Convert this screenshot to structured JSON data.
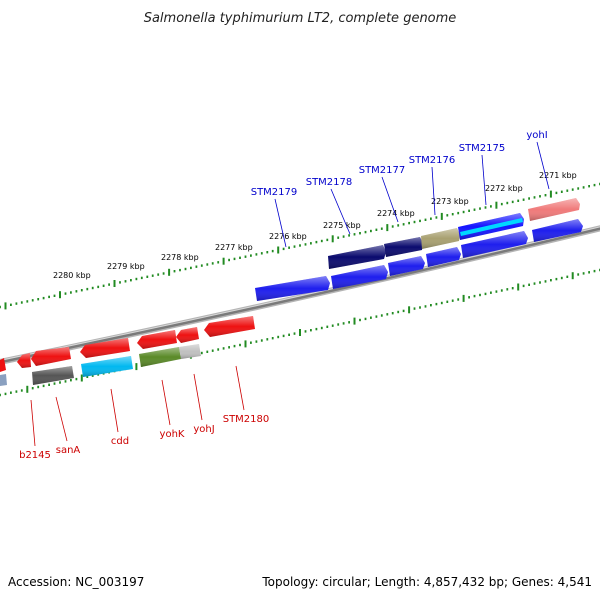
{
  "title": "Salmonella typhimurium LT2, complete genome",
  "accession": "Accession: NC_003197",
  "summary": "Topology: circular; Length: 4,857,432 bp; Genes: 4,541",
  "colors": {
    "forward_label": "#0000cc",
    "reverse_label": "#cc0000",
    "ticks": "#228b22",
    "backbone": "#808080"
  },
  "scale_labels": [
    "2280 kbp",
    "2279 kbp",
    "2278 kbp",
    "2277 kbp",
    "2276 kbp",
    "2275 kbp",
    "2274 kbp",
    "2273 kbp",
    "2272 kbp",
    "2271 kbp"
  ],
  "forward_genes": [
    "STM2179",
    "STM2178",
    "STM2177",
    "STM2176",
    "STM2175",
    "yohI"
  ],
  "reverse_genes": [
    "b2145",
    "sanA",
    "cdd",
    "yohK",
    "yohJ",
    "STM2180"
  ]
}
